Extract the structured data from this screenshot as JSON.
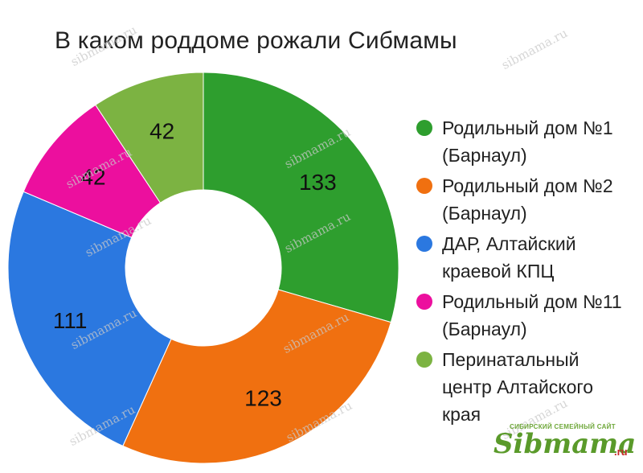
{
  "chart_data": {
    "type": "pie",
    "title": "В каком роддоме рожали Сибмамы",
    "donut": true,
    "legend_position": "right",
    "slices": [
      {
        "label": "Родильный дом №1 (Барнаул)",
        "value": 133,
        "color": "#2e9e2e"
      },
      {
        "label": "Родильный дом №2 (Барнаул)",
        "value": 123,
        "color": "#f07010"
      },
      {
        "label": "ДАР, Алтайский краевой КПЦ",
        "value": 111,
        "color": "#2b78e0"
      },
      {
        "label": "Родильный дом №11 (Барнаул)",
        "value": 42,
        "color": "#ec0f9e"
      },
      {
        "label": "Перинатальный центр Алтайского края",
        "value": 42,
        "color": "#7cb342"
      }
    ]
  },
  "watermark": "sibmama.ru",
  "brand": {
    "tagline": "СИБИРСКИЙ СЕМЕЙНЫЙ САЙТ",
    "name": "Sibmama",
    "tld": ".ru"
  }
}
